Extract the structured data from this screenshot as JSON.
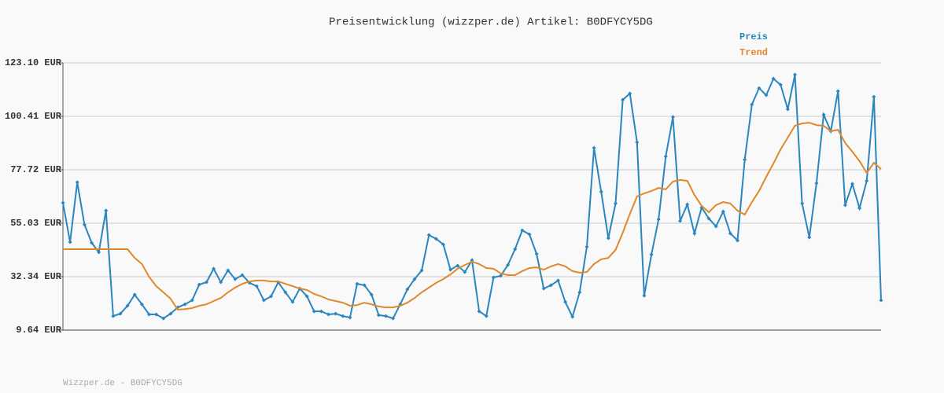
{
  "chart_data": {
    "type": "line",
    "title": "Preisentwicklung (wizzper.de) Artikel: B0DFYCY5DG",
    "footer": "Wizzper.de - B0DFYCY5DG",
    "ylim": [
      9.64,
      123.1
    ],
    "yticks": [
      {
        "value": 9.64,
        "label": "9.64 EUR"
      },
      {
        "value": 32.34,
        "label": "32.34 EUR"
      },
      {
        "value": 55.03,
        "label": "55.03 EUR"
      },
      {
        "value": 77.72,
        "label": "77.72 EUR"
      },
      {
        "value": 100.41,
        "label": "100.41 EUR"
      },
      {
        "value": 123.1,
        "label": "123.10 EUR"
      }
    ],
    "grid": true,
    "legend": "top-right",
    "series": [
      {
        "name": "Preis",
        "color": "#2a86bf",
        "markers": true,
        "values": [
          63.7,
          47.0,
          72.4,
          54.4,
          46.7,
          42.7,
          60.4,
          15.6,
          16.6,
          20.0,
          24.7,
          20.6,
          16.3,
          16.3,
          14.6,
          16.6,
          19.3,
          20.6,
          22.3,
          29.0,
          30.0,
          35.7,
          30.0,
          35.0,
          31.3,
          33.0,
          29.7,
          28.3,
          22.3,
          24.0,
          30.0,
          25.7,
          21.6,
          27.3,
          24.0,
          17.6,
          17.6,
          16.3,
          16.6,
          15.6,
          15.0,
          29.3,
          28.7,
          24.7,
          16.0,
          15.6,
          14.6,
          20.6,
          27.0,
          31.3,
          35.0,
          50.0,
          48.4,
          46.0,
          35.3,
          37.0,
          34.3,
          39.3,
          17.6,
          15.6,
          32.0,
          32.7,
          37.3,
          44.0,
          52.0,
          50.3,
          42.0,
          27.3,
          28.7,
          30.7,
          21.6,
          15.3,
          25.7,
          45.0,
          87.0,
          68.4,
          48.7,
          63.4,
          107.4,
          110.1,
          89.4,
          24.3,
          41.7,
          56.7,
          83.4,
          100.1,
          56.0,
          63.0,
          50.7,
          61.7,
          57.0,
          53.7,
          60.0,
          50.7,
          47.7,
          82.0,
          105.4,
          112.4,
          109.4,
          116.4,
          113.8,
          103.4,
          118.1,
          63.4,
          49.0,
          72.0,
          101.1,
          94.1,
          111.1,
          62.7,
          71.7,
          61.4,
          73.0,
          108.7,
          22.3
        ]
      },
      {
        "name": "Trend",
        "color": "#e0882a",
        "markers": false,
        "values": [
          44.0,
          44.0,
          44.0,
          44.0,
          44.0,
          44.0,
          44.0,
          44.0,
          44.0,
          44.0,
          40.3,
          37.7,
          32.3,
          28.3,
          25.7,
          23.0,
          18.3,
          18.6,
          19.0,
          20.0,
          20.6,
          22.0,
          23.3,
          25.7,
          27.7,
          29.3,
          30.3,
          30.7,
          30.7,
          30.3,
          30.3,
          29.3,
          28.3,
          27.3,
          26.7,
          25.0,
          24.0,
          22.7,
          22.0,
          21.3,
          20.0,
          20.3,
          21.3,
          20.6,
          19.7,
          19.3,
          19.3,
          20.0,
          21.3,
          23.3,
          25.7,
          27.7,
          29.7,
          31.3,
          33.3,
          35.7,
          37.3,
          38.7,
          37.7,
          36.0,
          35.7,
          33.7,
          33.0,
          33.0,
          34.7,
          36.0,
          36.3,
          35.3,
          36.7,
          37.7,
          36.7,
          34.7,
          34.0,
          34.3,
          37.7,
          39.7,
          40.3,
          43.7,
          51.0,
          59.0,
          66.4,
          67.7,
          68.7,
          70.0,
          69.4,
          72.7,
          73.4,
          73.0,
          67.0,
          62.4,
          59.7,
          62.7,
          64.0,
          63.4,
          60.4,
          58.7,
          64.0,
          68.7,
          74.7,
          80.4,
          86.4,
          91.4,
          96.4,
          97.4,
          97.7,
          96.7,
          96.4,
          94.1,
          94.7,
          89.1,
          85.4,
          81.4,
          76.4,
          80.7,
          78.0
        ]
      }
    ]
  }
}
